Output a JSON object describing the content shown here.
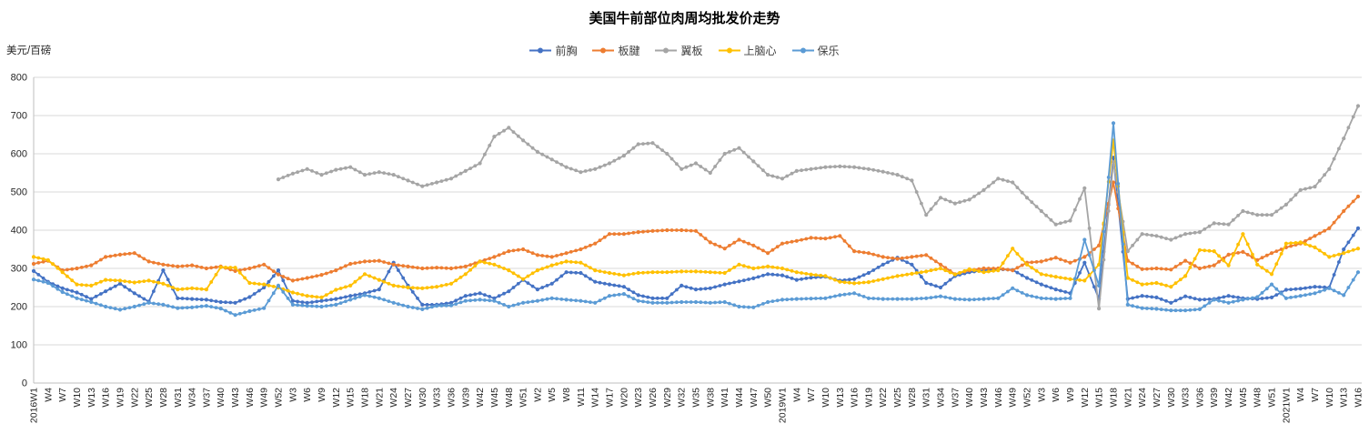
{
  "title": "美国牛前部位肉周均批发价走势",
  "y_axis": {
    "unit_label": "美元/百磅",
    "min": 0,
    "max": 800,
    "ticks": [
      0,
      100,
      200,
      300,
      400,
      500,
      600,
      700,
      800
    ]
  },
  "legend": {
    "position": "top"
  },
  "chart_data": {
    "type": "line",
    "title": "美国牛前部位肉周均批发价走势",
    "xlabel": "",
    "ylabel": "美元/百磅",
    "ylim": [
      0,
      800
    ],
    "grid": true,
    "legend_position": "top",
    "categories": [
      "2016W1",
      "W4",
      "W7",
      "W10",
      "W13",
      "W16",
      "W19",
      "W22",
      "W25",
      "W28",
      "W31",
      "W34",
      "W37",
      "W40",
      "W43",
      "W46",
      "W49",
      "W52",
      "W3",
      "W6",
      "W9",
      "W12",
      "W15",
      "W18",
      "W21",
      "W24",
      "W27",
      "W30",
      "W33",
      "W36",
      "W39",
      "W42",
      "W45",
      "W48",
      "W51",
      "W2",
      "W5",
      "W8",
      "W11",
      "W14",
      "W17",
      "W20",
      "W23",
      "W26",
      "W29",
      "W32",
      "W35",
      "W38",
      "W41",
      "W44",
      "W47",
      "W50",
      "2019W1",
      "W4",
      "W7",
      "W10",
      "W13",
      "W16",
      "W19",
      "W22",
      "W25",
      "W28",
      "W31",
      "W34",
      "W37",
      "W40",
      "W43",
      "W46",
      "W49",
      "W52",
      "W3",
      "W6",
      "W9",
      "W12",
      "W15",
      "W18",
      "W21",
      "W24",
      "W27",
      "W30",
      "W33",
      "W36",
      "W39",
      "W42",
      "W45",
      "W48",
      "W51",
      "2021W1",
      "W4",
      "W7",
      "W10",
      "W13",
      "W16"
    ],
    "series": [
      {
        "name": "前胸",
        "color": "#4472C4",
        "values": [
          293,
          265,
          248,
          237,
          220,
          240,
          260,
          235,
          213,
          295,
          222,
          220,
          218,
          212,
          210,
          225,
          250,
          295,
          215,
          210,
          215,
          220,
          228,
          235,
          245,
          315,
          255,
          205,
          205,
          210,
          228,
          235,
          222,
          240,
          270,
          245,
          260,
          290,
          288,
          265,
          258,
          252,
          230,
          222,
          222,
          255,
          245,
          248,
          258,
          266,
          274,
          285,
          282,
          270,
          276,
          278,
          268,
          272,
          288,
          310,
          328,
          310,
          262,
          250,
          280,
          290,
          295,
          298,
          296,
          275,
          258,
          245,
          235,
          315,
          220,
          590,
          220,
          228,
          224,
          210,
          227,
          218,
          220,
          228,
          222,
          220,
          224,
          244,
          247,
          252,
          250,
          350,
          405
        ]
      },
      {
        "name": "板腱",
        "color": "#ED7D31",
        "values": [
          312,
          320,
          295,
          300,
          308,
          330,
          336,
          340,
          318,
          310,
          305,
          308,
          300,
          305,
          293,
          300,
          310,
          284,
          268,
          275,
          283,
          295,
          312,
          318,
          320,
          310,
          305,
          300,
          302,
          300,
          305,
          318,
          330,
          345,
          350,
          335,
          330,
          340,
          350,
          365,
          390,
          390,
          395,
          398,
          400,
          400,
          398,
          368,
          352,
          375,
          360,
          340,
          365,
          372,
          380,
          378,
          385,
          345,
          340,
          330,
          325,
          330,
          335,
          310,
          285,
          295,
          300,
          300,
          295,
          315,
          318,
          328,
          315,
          330,
          360,
          525,
          320,
          298,
          300,
          297,
          320,
          300,
          308,
          336,
          343,
          322,
          340,
          355,
          365,
          385,
          405,
          450,
          488
        ]
      },
      {
        "name": "翼板",
        "color": "#A5A5A5",
        "values": [
          null,
          null,
          null,
          null,
          null,
          null,
          null,
          null,
          null,
          null,
          null,
          null,
          null,
          null,
          null,
          null,
          null,
          533,
          548,
          560,
          545,
          558,
          565,
          545,
          552,
          545,
          530,
          515,
          525,
          535,
          555,
          575,
          645,
          668,
          635,
          605,
          585,
          565,
          552,
          560,
          575,
          595,
          625,
          628,
          600,
          560,
          575,
          550,
          600,
          615,
          580,
          545,
          535,
          555,
          560,
          565,
          567,
          565,
          560,
          553,
          545,
          530,
          440,
          485,
          470,
          480,
          505,
          535,
          525,
          485,
          450,
          415,
          425,
          510,
          195,
          578,
          345,
          390,
          385,
          375,
          390,
          395,
          418,
          415,
          450,
          440,
          440,
          467,
          505,
          514,
          560,
          640,
          725
        ]
      },
      {
        "name": "上脑心",
        "color": "#FFC000",
        "values": [
          330,
          322,
          290,
          258,
          255,
          270,
          268,
          263,
          268,
          260,
          245,
          248,
          245,
          303,
          302,
          262,
          258,
          250,
          237,
          228,
          224,
          244,
          255,
          285,
          270,
          255,
          250,
          248,
          252,
          260,
          285,
          318,
          310,
          295,
          272,
          295,
          308,
          318,
          315,
          295,
          288,
          282,
          288,
          290,
          290,
          292,
          292,
          290,
          288,
          310,
          300,
          305,
          300,
          290,
          284,
          280,
          265,
          261,
          264,
          272,
          280,
          286,
          292,
          300,
          284,
          298,
          290,
          295,
          352,
          310,
          285,
          278,
          272,
          268,
          310,
          635,
          275,
          258,
          262,
          252,
          280,
          348,
          345,
          308,
          390,
          310,
          285,
          365,
          368,
          355,
          330,
          340,
          352
        ]
      },
      {
        "name": "保乐",
        "color": "#5B9BD5",
        "values": [
          271,
          262,
          238,
          222,
          212,
          200,
          192,
          200,
          210,
          205,
          196,
          198,
          202,
          195,
          178,
          188,
          196,
          255,
          205,
          202,
          200,
          205,
          218,
          230,
          222,
          210,
          200,
          193,
          202,
          203,
          215,
          218,
          215,
          200,
          210,
          215,
          222,
          218,
          215,
          210,
          228,
          233,
          215,
          210,
          210,
          212,
          212,
          210,
          212,
          200,
          198,
          212,
          218,
          220,
          221,
          222,
          230,
          235,
          222,
          220,
          220,
          220,
          222,
          227,
          220,
          218,
          220,
          222,
          248,
          230,
          222,
          220,
          222,
          375,
          255,
          680,
          205,
          196,
          194,
          190,
          190,
          193,
          218,
          210,
          218,
          225,
          258,
          222,
          228,
          235,
          248,
          230,
          290
        ]
      }
    ]
  }
}
